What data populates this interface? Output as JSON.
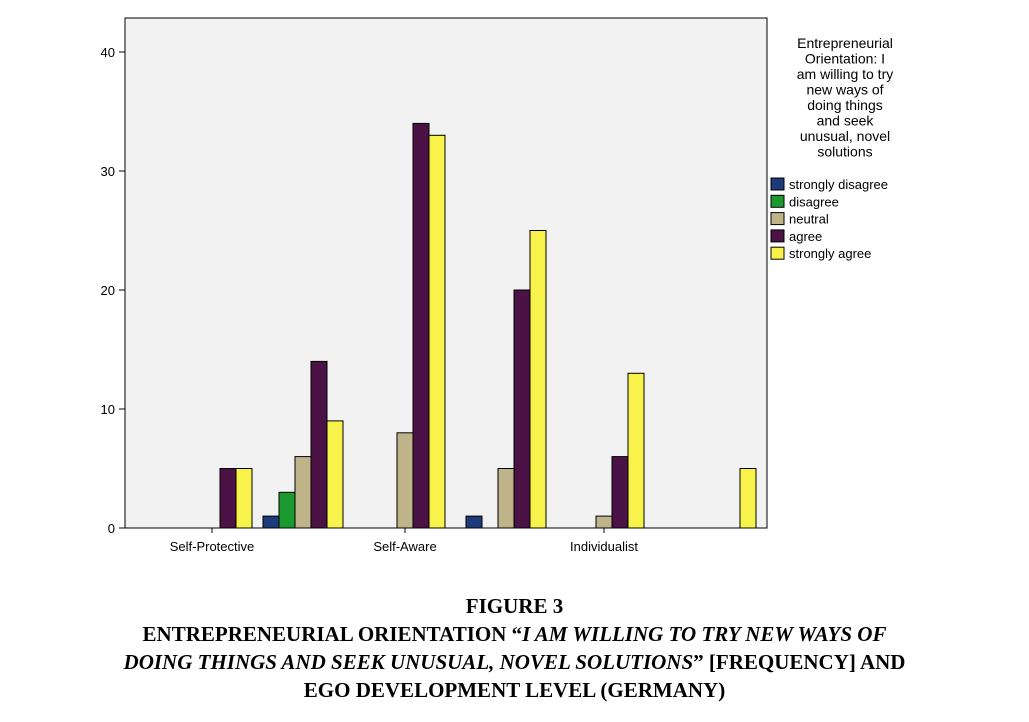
{
  "chart_data": {
    "type": "bar",
    "categories": [
      "Self-Protective",
      "",
      "Self-Aware",
      "",
      "Individualist",
      ""
    ],
    "ylim": [
      0,
      42
    ],
    "yticks": [
      0,
      10,
      20,
      30,
      40
    ],
    "legend": {
      "title": [
        "Entrepreneurial",
        "Orientation: I",
        "am willing to try",
        "new ways of",
        "doing things",
        "and seek",
        "unusual, novel",
        "solutions"
      ],
      "placement": "right"
    },
    "series": [
      {
        "name": "strongly disagree",
        "color": "#1e3a7a",
        "values": [
          0,
          1,
          0,
          1,
          0,
          0
        ]
      },
      {
        "name": "disagree",
        "color": "#1a9a2e",
        "values": [
          0,
          3,
          0,
          0,
          0,
          0
        ]
      },
      {
        "name": "neutral",
        "color": "#bfb38a",
        "values": [
          0,
          6,
          8,
          5,
          1,
          0
        ]
      },
      {
        "name": "agree",
        "color": "#4a1245",
        "values": [
          5,
          14,
          34,
          20,
          6,
          0
        ]
      },
      {
        "name": "strongly agree",
        "color": "#f7f34a",
        "values": [
          5,
          9,
          33,
          25,
          13,
          5
        ]
      }
    ]
  },
  "caption": {
    "line1": "FIGURE 3",
    "line2a": "ENTREPRENEURIAL ORIENTATION “",
    "line2b": "I AM WILLING TO TRY NEW WAYS OF",
    "line3a": "DOING THINGS AND SEEK UNUSUAL, NOVEL SOLUTIONS",
    "line3b": "” [FREQUENCY] AND",
    "line4": "EGO DEVELOPMENT LEVEL (GERMANY)"
  }
}
